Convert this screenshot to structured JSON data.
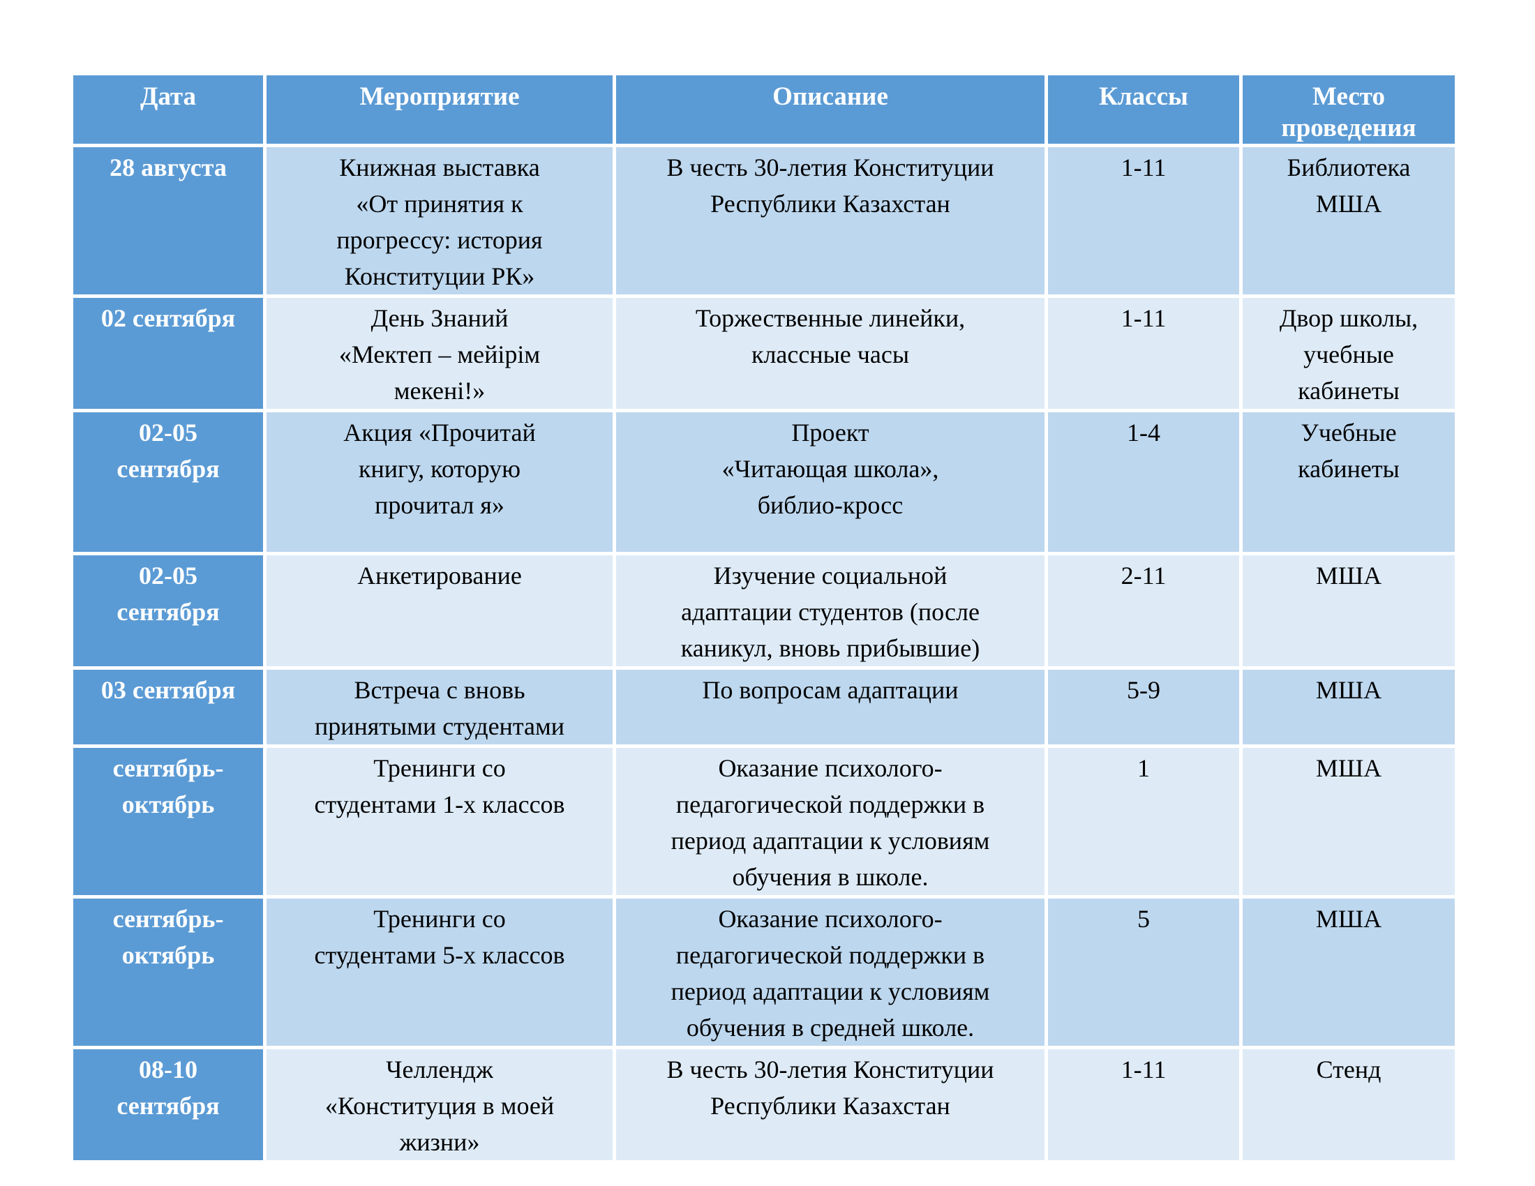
{
  "table": {
    "headers": [
      "Дата",
      "Мероприятие",
      "Описание",
      "Классы",
      "Место\nпроведения"
    ],
    "rows": [
      {
        "date": "28 августа",
        "event": "Книжная выставка\n«От принятия к\nпрогрессу: история\nКонституции РК»",
        "description": "В честь 30-летия Конституции\nРеспублики Казахстан",
        "classes": "1-11",
        "location": "Библиотека\nМША"
      },
      {
        "date": "02 сентября",
        "event": "День Знаний\n«Мектеп – мейірім\nмекені!»",
        "description": "Торжественные линейки,\nклассные часы",
        "classes": "1-11",
        "location": "Двор школы,\nучебные\nкабинеты"
      },
      {
        "date": "02-05\nсентября",
        "event": "Акция «Прочитай\nкнигу, которую\nпрочитал я»",
        "description": "Проект\n«Читающая школа»,\nбиблио-кросс",
        "classes": "1-4",
        "location": "Учебные\nкабинеты"
      },
      {
        "date": "02-05\nсентября",
        "event": "Анкетирование",
        "description": "Изучение социальной\nадаптации студентов (после\nканикул, вновь прибывшие)",
        "classes": "2-11",
        "location": "МША"
      },
      {
        "date": "03 сентября",
        "event": "Встреча с вновь\nпринятыми студентами",
        "description": "По вопросам адаптации",
        "classes": "5-9",
        "location": "МША"
      },
      {
        "date": "сентябрь-\nоктябрь",
        "event": "Тренинги со\nстудентами 1-х классов",
        "description": "Оказание психолого-\nпедагогической поддержки в\nпериод адаптации к условиям\nобучения в школе.",
        "classes": "1",
        "location": "МША"
      },
      {
        "date": "сентябрь-\nоктябрь",
        "event": "Тренинги со\nстудентами 5-х классов",
        "description": "Оказание психолого-\nпедагогической поддержки в\nпериод адаптации к условиям\nобучения в средней школе.",
        "classes": "5",
        "location": "МША"
      },
      {
        "date": "08-10\nсентября",
        "event": "Челлендж\n«Конституция в моей\nжизни»",
        "description": "В честь 30-летия Конституции\nРеспублики Казахстан",
        "classes": "1-11",
        "location": "Стенд"
      }
    ],
    "colors": {
      "header_bg": "#5B9BD5",
      "date_column_bg": "#5B9BD5",
      "row_odd_bg": "#BDD7EE",
      "row_even_bg": "#DEEBF7",
      "grid_border": "#FFFFFF",
      "header_text": "#FFFFFF",
      "body_text": "#000000"
    }
  }
}
